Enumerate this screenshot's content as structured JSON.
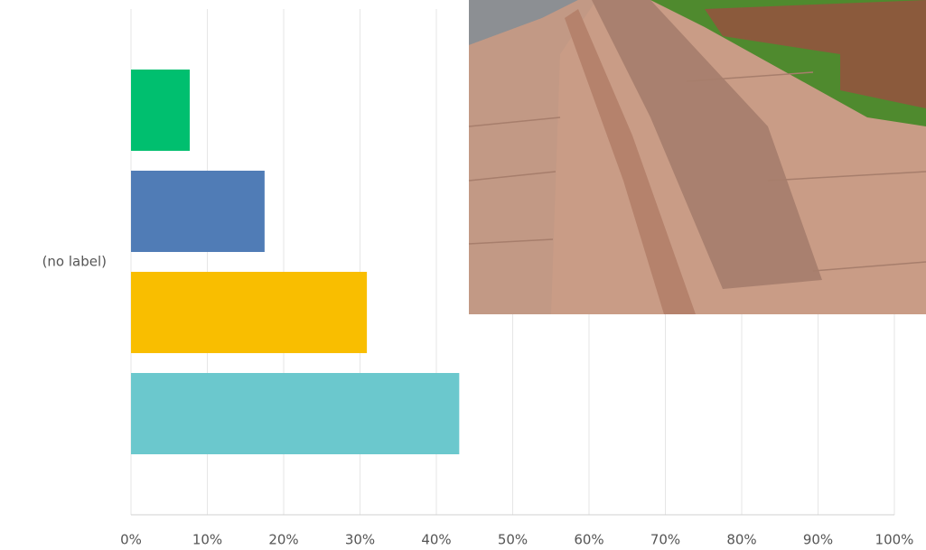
{
  "chart_data": {
    "type": "barh",
    "categories": [
      "(no label)"
    ],
    "series": [
      {
        "color": "#00bf6f",
        "values": [
          7.7
        ]
      },
      {
        "color": "#507cb6",
        "values": [
          17.5
        ]
      },
      {
        "color": "#f9be00",
        "values": [
          30.9
        ]
      },
      {
        "color": "#6bc8cd",
        "values": [
          43.0
        ]
      }
    ],
    "xlim": [
      0,
      100
    ],
    "xticks": [
      {
        "value": 0,
        "label": "0%"
      },
      {
        "value": 10,
        "label": "10%"
      },
      {
        "value": 20,
        "label": "20%"
      },
      {
        "value": 30,
        "label": "30%"
      },
      {
        "value": 40,
        "label": "40%"
      },
      {
        "value": 50,
        "label": "50%"
      },
      {
        "value": 60,
        "label": "60%"
      },
      {
        "value": 70,
        "label": "70%"
      },
      {
        "value": 80,
        "label": "80%"
      },
      {
        "value": 90,
        "label": "90%"
      },
      {
        "value": 100,
        "label": "100%"
      }
    ],
    "grid": true
  }
}
